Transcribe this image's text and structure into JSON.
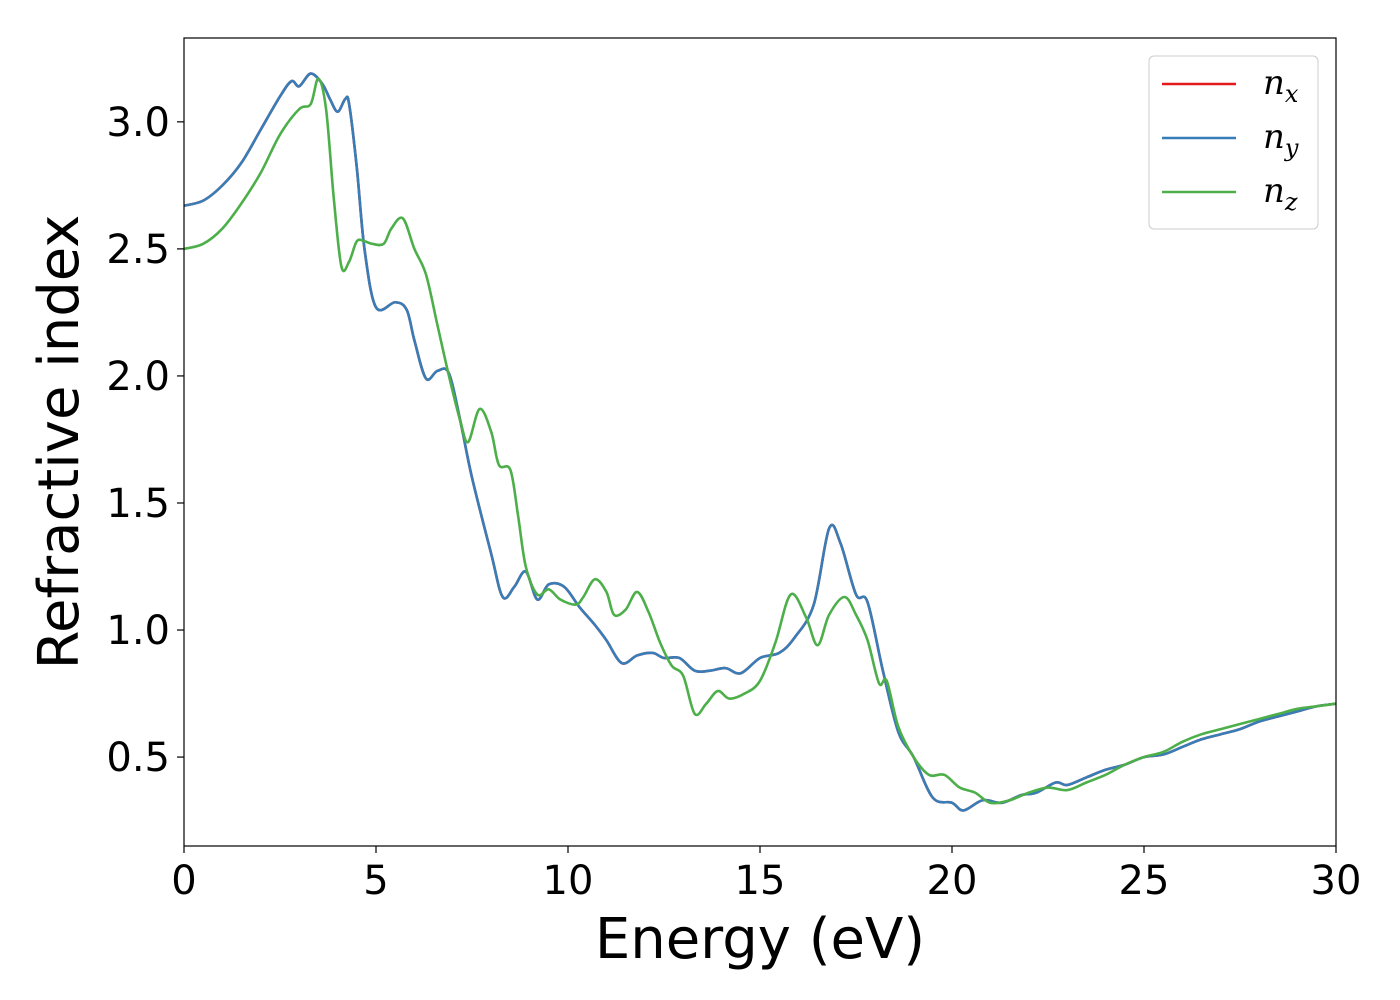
{
  "chart_data": {
    "type": "line",
    "xlabel": "Energy (eV)",
    "ylabel": "Refractive index",
    "xlim": [
      0,
      30
    ],
    "ylim": [
      0.15,
      3.33
    ],
    "xticks": [
      0,
      5,
      10,
      15,
      20,
      25,
      30
    ],
    "xtick_labels": [
      "0",
      "5",
      "10",
      "15",
      "20",
      "25",
      "30"
    ],
    "yticks": [
      0.5,
      1.0,
      1.5,
      2.0,
      2.5,
      3.0
    ],
    "ytick_labels": [
      "0.5",
      "1.0",
      "1.5",
      "2.0",
      "2.5",
      "3.0"
    ],
    "grid": false,
    "legend_position": "top-right",
    "series": [
      {
        "name": "n_x",
        "base": "n",
        "sub": "x",
        "color": "#e41a1c",
        "x": [
          0,
          0.5,
          1.0,
          1.5,
          2.0,
          2.5,
          2.8,
          3.0,
          3.3,
          3.6,
          3.8,
          4.0,
          4.2,
          4.3,
          4.5,
          4.7,
          5.0,
          5.5,
          5.8,
          6.0,
          6.3,
          6.6,
          6.9,
          7.2,
          7.5,
          8.0,
          8.3,
          8.6,
          8.9,
          9.2,
          9.5,
          9.9,
          10.3,
          10.7,
          11.0,
          11.4,
          11.8,
          12.2,
          12.5,
          12.9,
          13.3,
          13.7,
          14.1,
          14.5,
          15.0,
          15.5,
          15.9,
          16.4,
          16.8,
          17.1,
          17.5,
          17.8,
          18.2,
          18.6,
          19.0,
          19.5,
          20.0,
          20.3,
          20.8,
          21.3,
          21.8,
          22.2,
          22.7,
          23.0,
          23.5,
          24.0,
          24.5,
          25.0,
          25.5,
          26.0,
          26.5,
          27.0,
          27.5,
          28.0,
          28.5,
          29.0,
          29.5,
          30.0
        ],
        "values": [
          2.67,
          2.69,
          2.75,
          2.84,
          2.97,
          3.1,
          3.16,
          3.14,
          3.19,
          3.15,
          3.09,
          3.04,
          3.09,
          3.07,
          2.82,
          2.5,
          2.27,
          2.29,
          2.26,
          2.14,
          1.99,
          2.02,
          2.01,
          1.82,
          1.6,
          1.3,
          1.13,
          1.17,
          1.23,
          1.12,
          1.18,
          1.17,
          1.09,
          1.02,
          0.96,
          0.87,
          0.9,
          0.91,
          0.89,
          0.89,
          0.84,
          0.84,
          0.85,
          0.83,
          0.89,
          0.91,
          0.97,
          1.1,
          1.4,
          1.34,
          1.14,
          1.11,
          0.84,
          0.6,
          0.5,
          0.34,
          0.32,
          0.29,
          0.33,
          0.32,
          0.35,
          0.36,
          0.4,
          0.39,
          0.42,
          0.45,
          0.47,
          0.5,
          0.51,
          0.54,
          0.57,
          0.59,
          0.61,
          0.64,
          0.66,
          0.68,
          0.7,
          0.71
        ]
      },
      {
        "name": "n_y",
        "base": "n",
        "sub": "y",
        "color": "#377eb8",
        "x": [
          0,
          0.5,
          1.0,
          1.5,
          2.0,
          2.5,
          2.8,
          3.0,
          3.3,
          3.6,
          3.8,
          4.0,
          4.2,
          4.3,
          4.5,
          4.7,
          5.0,
          5.5,
          5.8,
          6.0,
          6.3,
          6.6,
          6.9,
          7.2,
          7.5,
          8.0,
          8.3,
          8.6,
          8.9,
          9.2,
          9.5,
          9.9,
          10.3,
          10.7,
          11.0,
          11.4,
          11.8,
          12.2,
          12.5,
          12.9,
          13.3,
          13.7,
          14.1,
          14.5,
          15.0,
          15.5,
          15.9,
          16.4,
          16.8,
          17.1,
          17.5,
          17.8,
          18.2,
          18.6,
          19.0,
          19.5,
          20.0,
          20.3,
          20.8,
          21.3,
          21.8,
          22.2,
          22.7,
          23.0,
          23.5,
          24.0,
          24.5,
          25.0,
          25.5,
          26.0,
          26.5,
          27.0,
          27.5,
          28.0,
          28.5,
          29.0,
          29.5,
          30.0
        ],
        "values": [
          2.67,
          2.69,
          2.75,
          2.84,
          2.97,
          3.1,
          3.16,
          3.14,
          3.19,
          3.15,
          3.09,
          3.04,
          3.09,
          3.07,
          2.82,
          2.5,
          2.27,
          2.29,
          2.26,
          2.14,
          1.99,
          2.02,
          2.01,
          1.82,
          1.6,
          1.3,
          1.13,
          1.17,
          1.23,
          1.12,
          1.18,
          1.17,
          1.09,
          1.02,
          0.96,
          0.87,
          0.9,
          0.91,
          0.89,
          0.89,
          0.84,
          0.84,
          0.85,
          0.83,
          0.89,
          0.91,
          0.97,
          1.1,
          1.4,
          1.34,
          1.14,
          1.11,
          0.84,
          0.6,
          0.5,
          0.34,
          0.32,
          0.29,
          0.33,
          0.32,
          0.35,
          0.36,
          0.4,
          0.39,
          0.42,
          0.45,
          0.47,
          0.5,
          0.51,
          0.54,
          0.57,
          0.59,
          0.61,
          0.64,
          0.66,
          0.68,
          0.7,
          0.71
        ]
      },
      {
        "name": "n_z",
        "base": "n",
        "sub": "z",
        "color": "#4daf4a",
        "x": [
          0,
          0.5,
          1.0,
          1.5,
          2.0,
          2.5,
          3.0,
          3.3,
          3.5,
          3.7,
          3.9,
          4.1,
          4.3,
          4.5,
          4.7,
          4.9,
          5.2,
          5.4,
          5.7,
          6.0,
          6.3,
          6.6,
          6.9,
          7.2,
          7.4,
          7.7,
          8.0,
          8.2,
          8.5,
          8.7,
          8.9,
          9.2,
          9.5,
          9.8,
          10.2,
          10.4,
          10.7,
          11.0,
          11.2,
          11.5,
          11.8,
          12.1,
          12.4,
          12.7,
          13.0,
          13.3,
          13.6,
          13.9,
          14.2,
          14.6,
          15.0,
          15.4,
          15.8,
          16.2,
          16.5,
          16.8,
          17.2,
          17.5,
          17.8,
          18.1,
          18.3,
          18.6,
          19.0,
          19.4,
          19.8,
          20.2,
          20.6,
          21.0,
          21.5,
          22.0,
          22.5,
          23.0,
          23.5,
          24.0,
          24.5,
          25.0,
          25.5,
          26.0,
          26.5,
          27.0,
          27.5,
          28.0,
          28.5,
          29.0,
          29.5,
          30.0
        ],
        "values": [
          2.5,
          2.52,
          2.58,
          2.68,
          2.8,
          2.95,
          3.05,
          3.07,
          3.17,
          3.05,
          2.7,
          2.43,
          2.45,
          2.53,
          2.53,
          2.52,
          2.52,
          2.58,
          2.62,
          2.5,
          2.4,
          2.2,
          2.0,
          1.82,
          1.74,
          1.87,
          1.78,
          1.65,
          1.63,
          1.45,
          1.25,
          1.14,
          1.16,
          1.12,
          1.1,
          1.13,
          1.2,
          1.15,
          1.06,
          1.08,
          1.15,
          1.07,
          0.95,
          0.86,
          0.82,
          0.67,
          0.71,
          0.76,
          0.73,
          0.75,
          0.8,
          0.95,
          1.14,
          1.05,
          0.94,
          1.06,
          1.13,
          1.06,
          0.96,
          0.79,
          0.8,
          0.62,
          0.5,
          0.43,
          0.43,
          0.38,
          0.36,
          0.32,
          0.33,
          0.36,
          0.38,
          0.37,
          0.4,
          0.43,
          0.47,
          0.5,
          0.52,
          0.56,
          0.59,
          0.61,
          0.63,
          0.65,
          0.67,
          0.69,
          0.7,
          0.71
        ]
      }
    ]
  }
}
